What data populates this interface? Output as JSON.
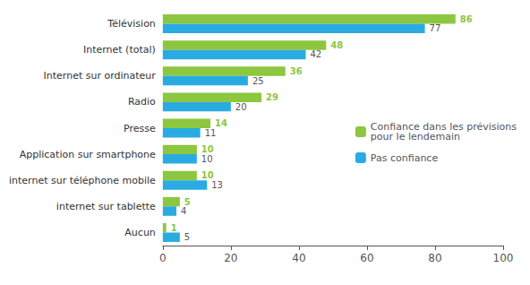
{
  "chart_data": {
    "type": "bar",
    "orientation": "horizontal",
    "categories": [
      "Aucun",
      "internet sur tablette",
      "internet sur téléphone mobile",
      "Application sur smartphone",
      "Presse",
      "Radio",
      "Internet sur ordinateur",
      "Internet (total)",
      "Télévision"
    ],
    "series": [
      {
        "name": "Confiance dans les prévisions\npour le lendemain",
        "color": "#8dc63f",
        "values": [
          1,
          5,
          10,
          10,
          14,
          29,
          36,
          48,
          86
        ]
      },
      {
        "name": "Pas confiance",
        "color": "#29abe2",
        "values": [
          5,
          4,
          13,
          10,
          11,
          20,
          25,
          42,
          77
        ]
      }
    ],
    "xlim": [
      0,
      100
    ],
    "xticks": [
      0,
      20,
      40,
      60,
      80,
      100
    ],
    "grid": false,
    "legend": "right",
    "data_labels": true
  }
}
